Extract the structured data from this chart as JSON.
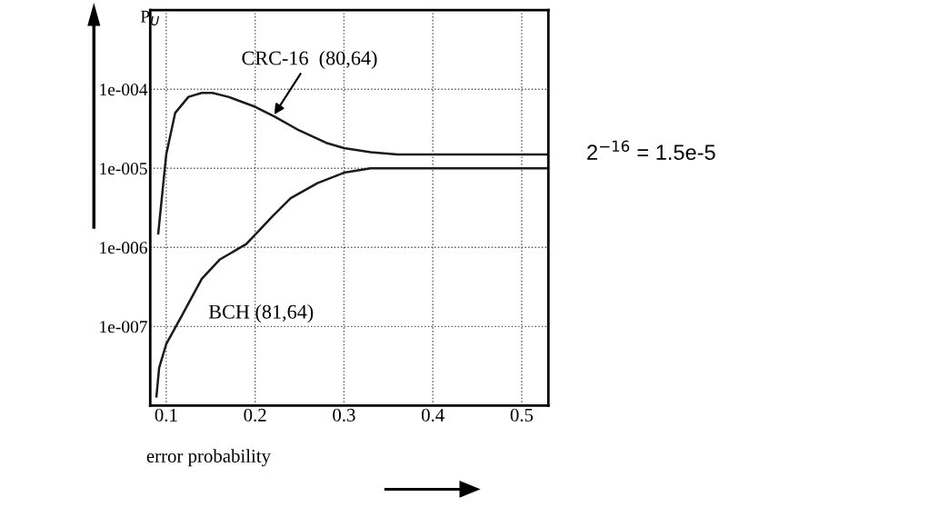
{
  "chart_data": {
    "type": "line",
    "xlabel": "error probability",
    "ylabel": "P$_{U}$",
    "series": [
      {
        "color": "#1a1a1a",
        "x": [
          0.091,
          0.1,
          0.11,
          0.125,
          0.14,
          0.152,
          0.17,
          0.2,
          0.222,
          0.25,
          0.28,
          0.3,
          0.33,
          0.36,
          0.4,
          0.45,
          0.5,
          0.53
        ],
        "values": [
          1.5e-06,
          1.5e-05,
          5e-05,
          8e-05,
          9e-05,
          9e-05,
          8e-05,
          6e-05,
          4.5e-05,
          3e-05,
          2.1e-05,
          1.8e-05,
          1.6e-05,
          1.5e-05,
          1.5e-05,
          1.5e-05,
          1.5e-05,
          1.5e-05
        ]
      },
      {
        "color": "#1a1a1a",
        "x": [
          0.089,
          0.092,
          0.1,
          0.118,
          0.14,
          0.16,
          0.19,
          0.22,
          0.24,
          0.27,
          0.3,
          0.33,
          0.36,
          0.4,
          0.45,
          0.5,
          0.53
        ],
        "values": [
          1.3e-08,
          3e-08,
          6e-08,
          1.4e-07,
          4e-07,
          7e-07,
          1.1e-06,
          2.5e-06,
          4.2e-06,
          6.5e-06,
          8.8e-06,
          1e-05,
          1e-05,
          1e-05,
          1e-05,
          1e-05,
          1e-05
        ]
      }
    ],
    "annotations": [
      {
        "text": "CRC-16  (80,64)",
        "x": 0.22,
        "y": 4.5e-05
      },
      {
        "text": "BCH (81,64)",
        "x": 0.19,
        "y": 1.1e-06
      },
      {
        "text": "2$^{−16}$ = 1.5e-5",
        "x": 0.53,
        "y": 1.5e-05
      }
    ],
    "log": "y",
    "xlim": [
      0.082,
      0.53
    ],
    "ylim": [
      1e-08,
      0.001
    ],
    "xticks": [
      0.1,
      0.2,
      0.3,
      0.4,
      0.5
    ],
    "yticks": [
      {
        "value": 0.0001,
        "label": "1e-004"
      },
      {
        "value": 1e-05,
        "label": "1e-005"
      },
      {
        "value": 1e-06,
        "label": "1e-006"
      },
      {
        "value": 1e-07,
        "label": "1e-007"
      }
    ],
    "grid": true,
    "line_style": "solid",
    "marker": "none"
  }
}
